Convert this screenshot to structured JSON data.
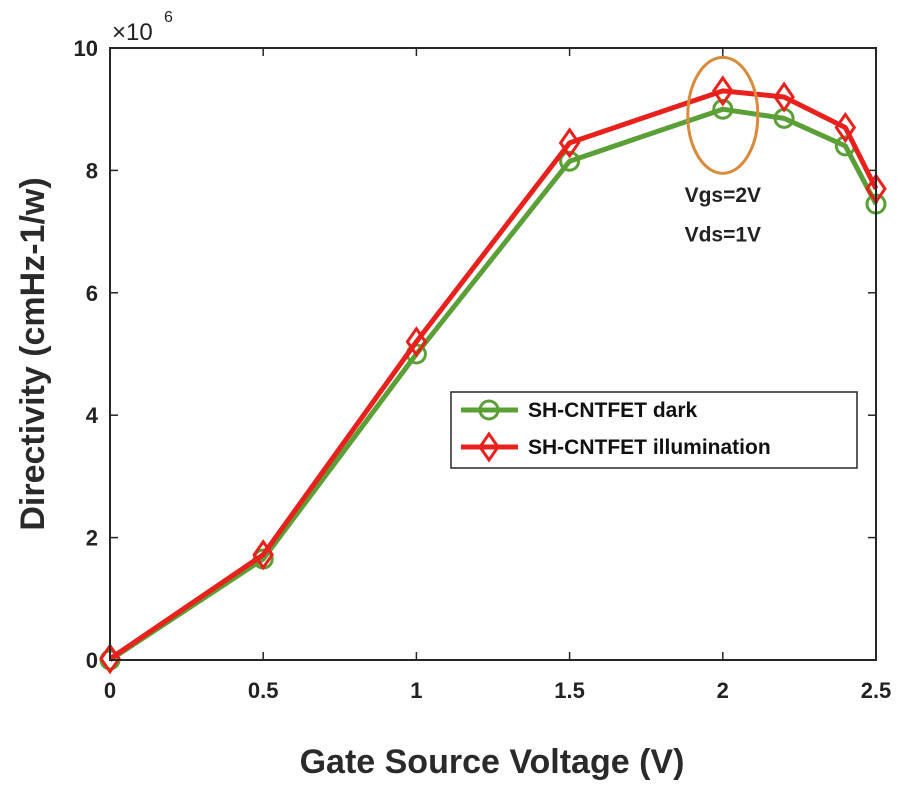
{
  "chart_data": {
    "type": "line",
    "title": "",
    "xlabel": "Gate Source Voltage  (V)",
    "ylabel": "Directivity  (cmHz-1/w)",
    "xlim": [
      0,
      2.5
    ],
    "ylim": [
      0,
      10
    ],
    "xticks": [
      "0",
      "0.5",
      "1",
      "1.5",
      "2",
      "2.5"
    ],
    "yticks": [
      "0",
      "2",
      "4",
      "6",
      "8",
      "10"
    ],
    "exponent": {
      "base": "×10",
      "power": "6"
    },
    "x": [
      0,
      0.5,
      1,
      1.5,
      2,
      2.2,
      2.4,
      2.5
    ],
    "series": [
      {
        "name": "SH-CNTFET dark",
        "color": "#5aa037",
        "marker": "circle",
        "values": [
          0,
          1.65,
          5.0,
          8.15,
          9.0,
          8.85,
          8.4,
          7.45
        ]
      },
      {
        "name": "SH-CNTFET illumination",
        "color": "#e8211d",
        "marker": "diamond",
        "values": [
          0.02,
          1.72,
          5.2,
          8.45,
          9.3,
          9.2,
          8.7,
          7.7
        ]
      }
    ],
    "legend": "middle-right",
    "annotations": [
      {
        "text": "Vgs=2V",
        "x": 2.0,
        "y": 7.6
      },
      {
        "text": "Vds=1V",
        "x": 2.0,
        "y": 6.95
      }
    ],
    "highlight": {
      "shape": "ellipse",
      "color": "#d98a3a",
      "x": 2.0,
      "y": 8.9
    }
  }
}
